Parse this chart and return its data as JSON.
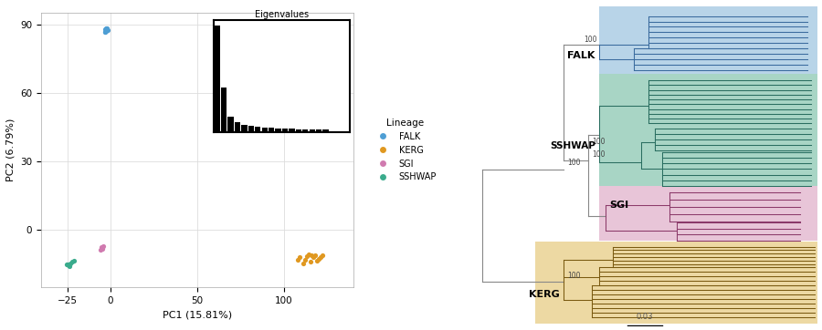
{
  "pca": {
    "falk": {
      "x": [
        -3,
        -2.5,
        -2,
        -2.8,
        -3.2,
        -1.8,
        -2.2,
        -2.6,
        -3.0,
        -2.4,
        -2.7,
        -2.3
      ],
      "y": [
        87,
        88,
        87.5,
        88.5,
        87,
        87.8,
        88.2,
        87.3,
        88.0,
        87.6,
        87.2,
        88.3
      ]
    },
    "kerg": {
      "x": [
        108,
        118,
        120,
        115,
        113,
        117,
        119,
        121,
        116,
        114,
        112,
        109,
        111,
        122
      ],
      "y": [
        -13,
        -11,
        -12.5,
        -14,
        -11.5,
        -12,
        -13.5,
        -12,
        -11,
        -10.5,
        -13,
        -12,
        -14.5,
        -11.2
      ]
    },
    "sgi": {
      "x": [
        -5,
        -4,
        -6,
        -5.5,
        -4.5
      ],
      "y": [
        -8,
        -7,
        -8.5,
        -7.5,
        -8.2
      ]
    },
    "sshwap": {
      "x": [
        -25,
        -22,
        -24,
        -23,
        -21,
        -25.5,
        -23.5
      ],
      "y": [
        -15,
        -14,
        -15.5,
        -14.5,
        -13.5,
        -15,
        -16
      ]
    }
  },
  "colors": {
    "falk": "#4E9ED4",
    "kerg": "#E09820",
    "sgi": "#D07AAF",
    "sshwap": "#3AAB8C"
  },
  "tree_colors": {
    "falk": "#3A6B9E",
    "kerg": "#7A5A10",
    "sgi": "#8B3A6A",
    "sshwap": "#2A6E60"
  },
  "bg_colors": {
    "falk": "#B8D4E8",
    "kerg": "#EDD9A3",
    "sgi": "#E8C5D8",
    "sshwap": "#A8D5C5"
  },
  "xlim": [
    -40,
    140
  ],
  "ylim": [
    -25,
    95
  ],
  "xticks": [
    -25,
    0,
    50,
    100
  ],
  "yticks": [
    0,
    30,
    60,
    90
  ],
  "xlabel": "PC1 (15.81%)",
  "ylabel": "PC2 (6.79%)",
  "eigenvalues": [
    100,
    42,
    14,
    9,
    7,
    6,
    5,
    4,
    4,
    3,
    3,
    3,
    2,
    2,
    2,
    2,
    2,
    1,
    1,
    1
  ]
}
